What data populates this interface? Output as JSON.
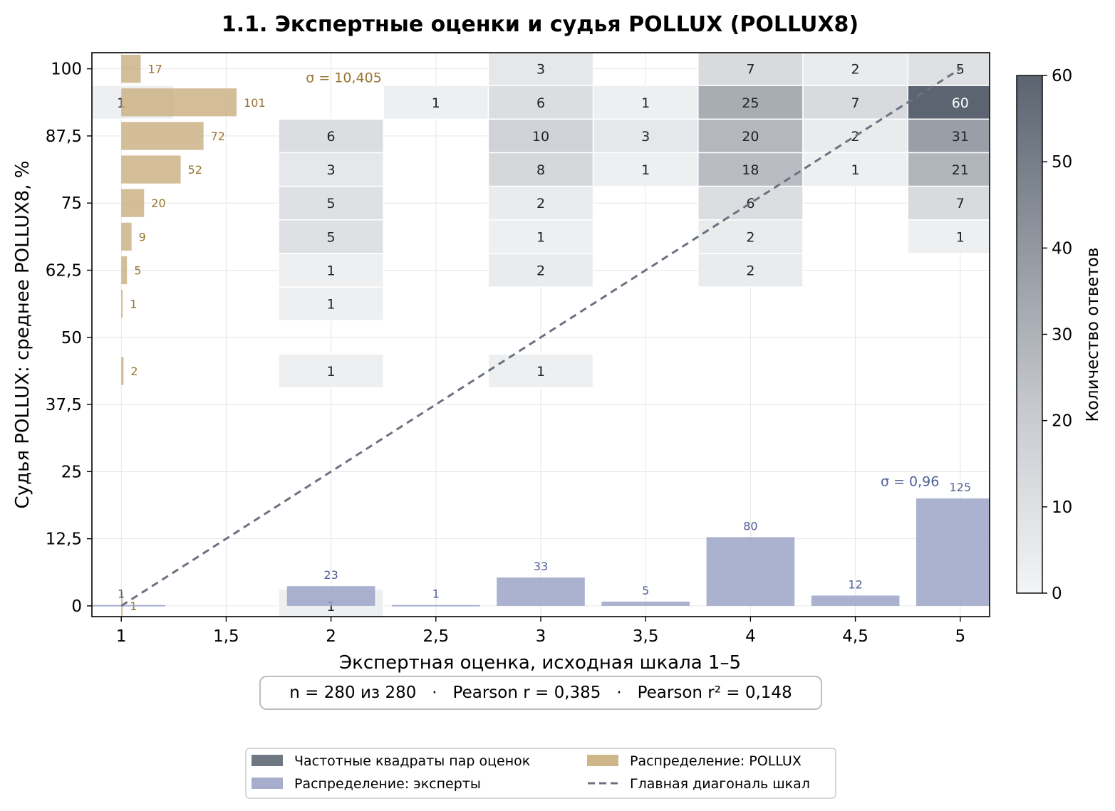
{
  "chart_data": {
    "type": "heatmap",
    "title": "1.1. Экспертные оценки и судья POLLUX (POLLUX8)",
    "xlabel": "Экспертная оценка, исходная шкала 1–5",
    "ylabel": "Судья POLLUX: среднее POLLUX8, %",
    "xlim": [
      0.86,
      5.14
    ],
    "ylim": [
      -2,
      103
    ],
    "x_ticks": [
      1,
      1.5,
      2,
      2.5,
      3,
      3.5,
      4,
      4.5,
      5
    ],
    "x_tick_labels": [
      "1",
      "1,5",
      "2",
      "2,5",
      "3",
      "3,5",
      "4",
      "4,5",
      "5"
    ],
    "y_ticks": [
      0,
      12.5,
      25,
      37.5,
      50,
      62.5,
      75,
      87.5,
      100
    ],
    "y_tick_labels": [
      "0",
      "12,5",
      "25",
      "37,5",
      "50",
      "62,5",
      "75",
      "87,5",
      "100"
    ],
    "grid": true,
    "colorbar": {
      "label": "Количество ответов",
      "range": [
        0,
        60
      ],
      "ticks": [
        0,
        10,
        20,
        30,
        40,
        50,
        60
      ],
      "color_low": "#f3f4f6",
      "color_high": "#5b6470"
    },
    "cells": [
      {
        "x": 3,
        "y": 100,
        "count": 3
      },
      {
        "x": 4,
        "y": 100,
        "count": 7
      },
      {
        "x": 4.5,
        "y": 100,
        "count": 2
      },
      {
        "x": 5,
        "y": 100,
        "count": 5
      },
      {
        "x": 1,
        "y": 93.75,
        "count": 1
      },
      {
        "x": 2.5,
        "y": 93.75,
        "count": 1
      },
      {
        "x": 3,
        "y": 93.75,
        "count": 6
      },
      {
        "x": 3.5,
        "y": 93.75,
        "count": 1
      },
      {
        "x": 4,
        "y": 93.75,
        "count": 25
      },
      {
        "x": 4.5,
        "y": 93.75,
        "count": 7
      },
      {
        "x": 5,
        "y": 93.75,
        "count": 60
      },
      {
        "x": 2,
        "y": 87.5,
        "count": 6
      },
      {
        "x": 3,
        "y": 87.5,
        "count": 10
      },
      {
        "x": 3.5,
        "y": 87.5,
        "count": 3
      },
      {
        "x": 4,
        "y": 87.5,
        "count": 20
      },
      {
        "x": 4.5,
        "y": 87.5,
        "count": 2
      },
      {
        "x": 5,
        "y": 87.5,
        "count": 31
      },
      {
        "x": 2,
        "y": 81.25,
        "count": 3
      },
      {
        "x": 3,
        "y": 81.25,
        "count": 8
      },
      {
        "x": 3.5,
        "y": 81.25,
        "count": 1
      },
      {
        "x": 4,
        "y": 81.25,
        "count": 18
      },
      {
        "x": 4.5,
        "y": 81.25,
        "count": 1
      },
      {
        "x": 5,
        "y": 81.25,
        "count": 21
      },
      {
        "x": 2,
        "y": 75,
        "count": 5
      },
      {
        "x": 3,
        "y": 75,
        "count": 2
      },
      {
        "x": 4,
        "y": 75,
        "count": 6
      },
      {
        "x": 5,
        "y": 75,
        "count": 7
      },
      {
        "x": 2,
        "y": 68.75,
        "count": 5
      },
      {
        "x": 3,
        "y": 68.75,
        "count": 1
      },
      {
        "x": 4,
        "y": 68.75,
        "count": 2
      },
      {
        "x": 5,
        "y": 68.75,
        "count": 1
      },
      {
        "x": 2,
        "y": 62.5,
        "count": 1
      },
      {
        "x": 3,
        "y": 62.5,
        "count": 2
      },
      {
        "x": 4,
        "y": 62.5,
        "count": 2
      },
      {
        "x": 2,
        "y": 56.25,
        "count": 1
      },
      {
        "x": 2,
        "y": 43.75,
        "count": 1
      },
      {
        "x": 3,
        "y": 43.75,
        "count": 1
      },
      {
        "x": 2,
        "y": 0,
        "count": 1
      }
    ],
    "pollux_distribution": {
      "name": "Распределение: POLLUX",
      "sigma_label": "σ = 10,405",
      "color": "#c9ad80",
      "label_color": "#9a7430",
      "bins": [
        {
          "y": 100,
          "count": 17
        },
        {
          "y": 93.75,
          "count": 101
        },
        {
          "y": 87.5,
          "count": 72
        },
        {
          "y": 81.25,
          "count": 52
        },
        {
          "y": 75,
          "count": 20
        },
        {
          "y": 68.75,
          "count": 9
        },
        {
          "y": 62.5,
          "count": 5
        },
        {
          "y": 56.25,
          "count": 1
        },
        {
          "y": 43.75,
          "count": 2
        },
        {
          "y": 0,
          "count": 1
        }
      ],
      "max_width_x": 0.55
    },
    "expert_distribution": {
      "name": "Распределение: эксперты",
      "sigma_label": "σ = 0,96",
      "color": "#9ca5c8",
      "label_color": "#4f5f96",
      "bins": [
        {
          "x": 1,
          "count": 1
        },
        {
          "x": 2,
          "count": 23
        },
        {
          "x": 2.5,
          "count": 1
        },
        {
          "x": 3,
          "count": 33
        },
        {
          "x": 3.5,
          "count": 5
        },
        {
          "x": 4,
          "count": 80
        },
        {
          "x": 4.5,
          "count": 12
        },
        {
          "x": 5,
          "count": 125
        }
      ],
      "max_height_y": 20
    },
    "diagonal": {
      "name": "Главная диагональ шкал",
      "from": [
        1,
        0
      ],
      "to": [
        5,
        100
      ],
      "color": "#6b7280"
    },
    "heatmap_legend_name": "Частотные квадраты пар оценок",
    "stats_box": "n = 280 из 280   ·   Pearson r = 0,385   ·   Pearson r² = 0,148",
    "legend_position": "bottom-center"
  }
}
